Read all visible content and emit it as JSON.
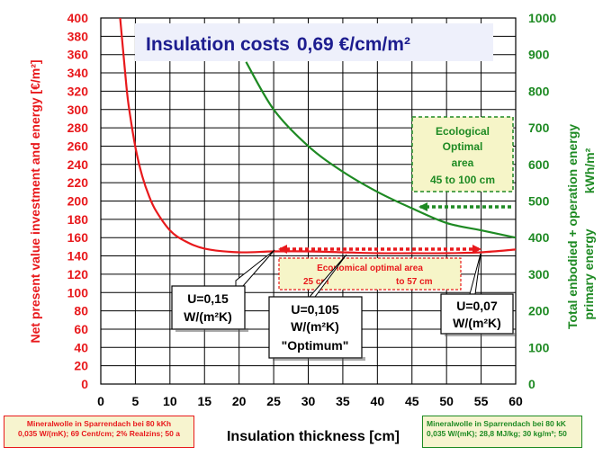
{
  "chart_data": {
    "type": "line",
    "title": "Insulation costs",
    "title_value": "0,69 €/cm/m²",
    "xlabel": "Insulation thickness [cm]",
    "ylabel_left": "Net present value investment and energy [€/m²]",
    "ylabel_right_line1": "Total enbodied + operation energy",
    "ylabel_right_line2": "primary energy",
    "ylabel_right_unit": "kWh/m²",
    "xlim": [
      0,
      60
    ],
    "ylim_left": [
      0,
      400
    ],
    "ylim_right": [
      0,
      1000
    ],
    "x_ticks": [
      "0",
      "5",
      "10",
      "15",
      "20",
      "25",
      "30",
      "35",
      "40",
      "45",
      "50",
      "55",
      "60"
    ],
    "y_left_ticks": [
      "0",
      "20",
      "40",
      "60",
      "80",
      "100",
      "120",
      "140",
      "160",
      "180",
      "200",
      "220",
      "240",
      "260",
      "280",
      "300",
      "320",
      "340",
      "360",
      "380",
      "400"
    ],
    "y_right_ticks": [
      "0",
      "100",
      "200",
      "300",
      "400",
      "500",
      "600",
      "700",
      "800",
      "900",
      "1000"
    ],
    "grid": true,
    "series": [
      {
        "axis": "left",
        "color": "#e8191c",
        "x": [
          2.8,
          3.5,
          4,
          5,
          6,
          7,
          8,
          10,
          12,
          15,
          20,
          25,
          30,
          35,
          40,
          45,
          50,
          55,
          60
        ],
        "values": [
          400,
          342,
          306,
          259,
          227,
          205,
          189,
          168,
          157,
          148,
          144,
          145,
          145,
          144,
          143,
          143,
          143,
          144,
          147
        ]
      },
      {
        "axis": "right",
        "color": "#1e8a23",
        "x": [
          21,
          25,
          30,
          35,
          40,
          45,
          50,
          55,
          60
        ],
        "values": [
          880,
          750,
          650,
          580,
          525,
          480,
          440,
          420,
          400
        ]
      }
    ],
    "annotations": {
      "ecological": {
        "line1": "Ecological",
        "line2": "Optimal",
        "line3": "area",
        "range": "45  to  100 cm"
      },
      "economical": {
        "title": "Economical  optimal  area",
        "from": "25 cm",
        "to": "to 57 cm"
      },
      "u_left": {
        "line1": "U=0,15",
        "line2": "W/(m²K)"
      },
      "u_mid": {
        "line1": "U=0,105",
        "line2": "W/(m²K)",
        "line3": "\"Optimum\""
      },
      "u_right": {
        "line1": "U=0,07",
        "line2": "W/(m²K)"
      }
    },
    "colors": {
      "left_axis": "#e8191c",
      "right_axis": "#1e8a23",
      "plot_bg": "#ffffff",
      "title_color": "#1d1d8f"
    }
  },
  "footnotes": {
    "left": {
      "line1": "Mineralwolle  in Sparrendach bei 80 kKh",
      "line2": "0,035 W/(mK); 69 Cent/cm; 2% Realzins;  50 a"
    },
    "right": {
      "line1": "Mineralwolle  in Sparrendach bei 80 kK",
      "line2": "0,035 W/(mK); 28,8 MJ/kg; 30 kg/m³; 50"
    }
  }
}
